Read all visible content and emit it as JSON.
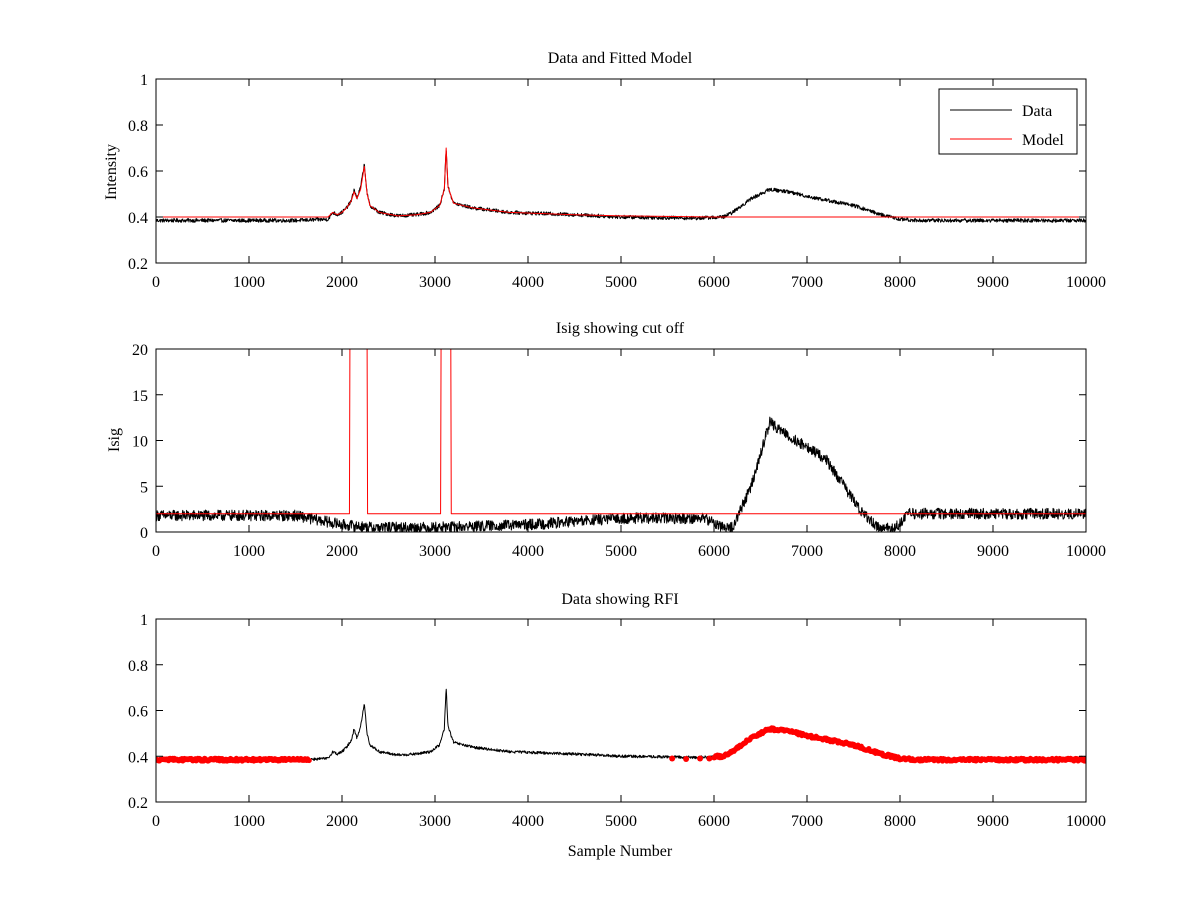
{
  "chart_data": [
    {
      "type": "line",
      "title": "Data and Fitted Model",
      "xlabel": "",
      "ylabel": "Intensity",
      "xlim": [
        0,
        10000
      ],
      "ylim": [
        0.2,
        1
      ],
      "xticks": [
        0,
        1000,
        2000,
        3000,
        4000,
        5000,
        6000,
        7000,
        8000,
        9000,
        10000
      ],
      "yticks": [
        0.2,
        0.4,
        0.6,
        0.8,
        1
      ],
      "ytick_labels": [
        "0.2",
        "0.4",
        "0.6",
        "0.8",
        "1"
      ],
      "legend": {
        "position": "top-right",
        "entries": [
          "Data",
          "Model"
        ]
      },
      "series": [
        {
          "name": "Data",
          "color": "#000000",
          "noise": 0.008,
          "points": [
            [
              0,
              0.385
            ],
            [
              1500,
              0.385
            ],
            [
              1850,
              0.39
            ],
            [
              1900,
              0.42
            ],
            [
              1950,
              0.41
            ],
            [
              2000,
              0.42
            ],
            [
              2050,
              0.44
            ],
            [
              2100,
              0.47
            ],
            [
              2130,
              0.52
            ],
            [
              2160,
              0.48
            ],
            [
              2200,
              0.53
            ],
            [
              2240,
              0.63
            ],
            [
              2270,
              0.5
            ],
            [
              2300,
              0.45
            ],
            [
              2400,
              0.42
            ],
            [
              2600,
              0.405
            ],
            [
              2800,
              0.41
            ],
            [
              2950,
              0.42
            ],
            [
              3050,
              0.45
            ],
            [
              3100,
              0.52
            ],
            [
              3120,
              0.7
            ],
            [
              3140,
              0.53
            ],
            [
              3200,
              0.46
            ],
            [
              3400,
              0.44
            ],
            [
              3800,
              0.42
            ],
            [
              4500,
              0.41
            ],
            [
              5000,
              0.4
            ],
            [
              5800,
              0.395
            ],
            [
              6100,
              0.4
            ],
            [
              6200,
              0.42
            ],
            [
              6400,
              0.48
            ],
            [
              6600,
              0.52
            ],
            [
              6800,
              0.51
            ],
            [
              7000,
              0.49
            ],
            [
              7500,
              0.45
            ],
            [
              7800,
              0.41
            ],
            [
              8000,
              0.39
            ],
            [
              8200,
              0.385
            ],
            [
              10000,
              0.385
            ]
          ]
        },
        {
          "name": "Model",
          "color": "#ff0000",
          "noise": 0,
          "points": [
            [
              0,
              0.4
            ],
            [
              1850,
              0.4
            ],
            [
              1900,
              0.42
            ],
            [
              1950,
              0.41
            ],
            [
              2000,
              0.42
            ],
            [
              2050,
              0.44
            ],
            [
              2100,
              0.47
            ],
            [
              2130,
              0.51
            ],
            [
              2160,
              0.48
            ],
            [
              2200,
              0.52
            ],
            [
              2240,
              0.62
            ],
            [
              2270,
              0.5
            ],
            [
              2300,
              0.45
            ],
            [
              2400,
              0.42
            ],
            [
              2600,
              0.405
            ],
            [
              2800,
              0.41
            ],
            [
              2950,
              0.42
            ],
            [
              3050,
              0.45
            ],
            [
              3100,
              0.52
            ],
            [
              3120,
              0.7
            ],
            [
              3140,
              0.53
            ],
            [
              3200,
              0.46
            ],
            [
              3400,
              0.44
            ],
            [
              3800,
              0.42
            ],
            [
              4500,
              0.41
            ],
            [
              5000,
              0.405
            ],
            [
              6000,
              0.4
            ],
            [
              10000,
              0.4
            ]
          ]
        }
      ]
    },
    {
      "type": "line",
      "title": "Isig showing cut off",
      "xlabel": "",
      "ylabel": "Isig",
      "xlim": [
        0,
        10000
      ],
      "ylim": [
        0,
        20
      ],
      "xticks": [
        0,
        1000,
        2000,
        3000,
        4000,
        5000,
        6000,
        7000,
        8000,
        9000,
        10000
      ],
      "yticks": [
        0,
        5,
        10,
        15,
        20
      ],
      "ytick_labels": [
        "0",
        "5",
        "10",
        "15",
        "20"
      ],
      "series": [
        {
          "name": "Isig",
          "color": "#000000",
          "noise": 0.6,
          "points": [
            [
              0,
              1.8
            ],
            [
              1500,
              1.8
            ],
            [
              1800,
              1.2
            ],
            [
              2000,
              0.8
            ],
            [
              2300,
              0.5
            ],
            [
              3000,
              0.5
            ],
            [
              4000,
              0.8
            ],
            [
              5000,
              1.5
            ],
            [
              5900,
              1.5
            ],
            [
              6100,
              0.5
            ],
            [
              6200,
              0.5
            ],
            [
              6400,
              5
            ],
            [
              6600,
              12
            ],
            [
              6800,
              10.5
            ],
            [
              7200,
              8
            ],
            [
              7600,
              2
            ],
            [
              7800,
              0.3
            ],
            [
              7950,
              0.5
            ],
            [
              8100,
              2
            ],
            [
              10000,
              2
            ]
          ]
        },
        {
          "name": "Cut off",
          "color": "#ff0000",
          "noise": 0,
          "points": [
            [
              0,
              2
            ],
            [
              2080,
              2
            ],
            [
              2085,
              20
            ],
            [
              2270,
              20
            ],
            [
              2275,
              2
            ],
            [
              3060,
              2
            ],
            [
              3065,
              20
            ],
            [
              3170,
              20
            ],
            [
              3175,
              2
            ],
            [
              10000,
              2
            ]
          ]
        }
      ]
    },
    {
      "type": "scatter",
      "title": "Data showing RFI",
      "xlabel": "Sample Number",
      "ylabel": "",
      "xlim": [
        0,
        10000
      ],
      "ylim": [
        0.2,
        1
      ],
      "xticks": [
        0,
        1000,
        2000,
        3000,
        4000,
        5000,
        6000,
        7000,
        8000,
        9000,
        10000
      ],
      "yticks": [
        0.2,
        0.4,
        0.6,
        0.8,
        1
      ],
      "ytick_labels": [
        "0.2",
        "0.4",
        "0.6",
        "0.8",
        "1"
      ],
      "series": [
        {
          "name": "Data",
          "color": "#000000",
          "noise": 0.006,
          "points": [
            [
              0,
              0.385
            ],
            [
              1500,
              0.385
            ],
            [
              1850,
              0.39
            ],
            [
              1900,
              0.42
            ],
            [
              1950,
              0.41
            ],
            [
              2000,
              0.42
            ],
            [
              2050,
              0.44
            ],
            [
              2100,
              0.47
            ],
            [
              2130,
              0.52
            ],
            [
              2160,
              0.48
            ],
            [
              2200,
              0.53
            ],
            [
              2240,
              0.63
            ],
            [
              2270,
              0.5
            ],
            [
              2300,
              0.45
            ],
            [
              2400,
              0.42
            ],
            [
              2600,
              0.405
            ],
            [
              2800,
              0.41
            ],
            [
              2950,
              0.42
            ],
            [
              3050,
              0.45
            ],
            [
              3100,
              0.52
            ],
            [
              3120,
              0.7
            ],
            [
              3140,
              0.53
            ],
            [
              3200,
              0.46
            ],
            [
              3400,
              0.44
            ],
            [
              3800,
              0.42
            ],
            [
              4500,
              0.41
            ],
            [
              5000,
              0.4
            ],
            [
              5800,
              0.395
            ],
            [
              6100,
              0.4
            ],
            [
              6200,
              0.42
            ],
            [
              6400,
              0.48
            ],
            [
              6600,
              0.52
            ],
            [
              6800,
              0.51
            ],
            [
              7000,
              0.49
            ],
            [
              7500,
              0.45
            ],
            [
              7800,
              0.41
            ],
            [
              8000,
              0.39
            ],
            [
              8200,
              0.385
            ],
            [
              10000,
              0.385
            ]
          ]
        },
        {
          "name": "RFI",
          "color": "#ff0000",
          "flagged_ranges": [
            [
              0,
              1650
            ],
            [
              6000,
              10000
            ]
          ],
          "isolated_points": [
            [
              5550,
              0.39
            ],
            [
              5700,
              0.388
            ],
            [
              5850,
              0.39
            ],
            [
              5950,
              0.39
            ]
          ]
        }
      ]
    }
  ]
}
